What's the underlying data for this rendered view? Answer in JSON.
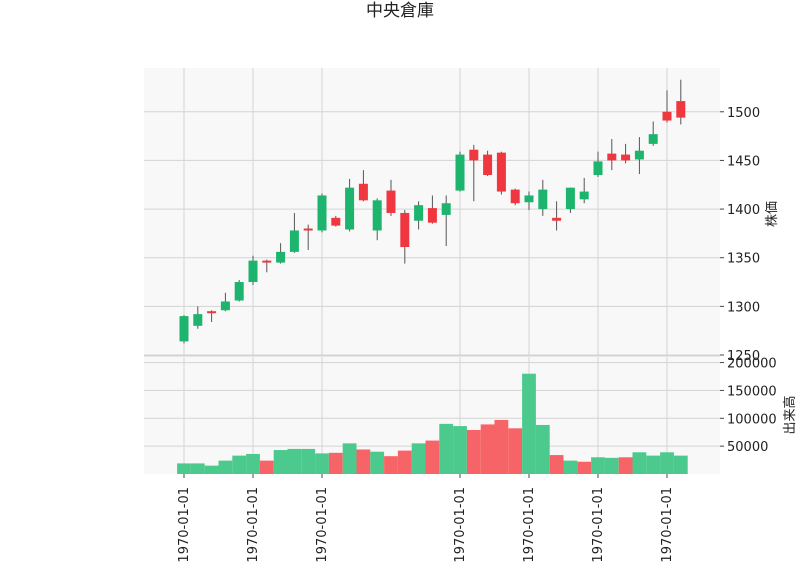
{
  "chart_data": [
    {
      "type": "candlestick",
      "title": "中央倉庫",
      "ylabel": "株価",
      "ylim": [
        1250,
        1545
      ],
      "yticks": [
        1250,
        1300,
        1350,
        1400,
        1450,
        1500
      ],
      "grid": true,
      "up_color": "#1db46e",
      "down_color": "#f0373f",
      "ohlc": [
        {
          "open": 1264,
          "high": 1291,
          "low": 1262,
          "close": 1290
        },
        {
          "open": 1280,
          "high": 1300,
          "low": 1277,
          "close": 1292
        },
        {
          "open": 1295,
          "high": 1296,
          "low": 1284,
          "close": 1294
        },
        {
          "open": 1296,
          "high": 1314,
          "low": 1295,
          "close": 1305
        },
        {
          "open": 1306,
          "high": 1327,
          "low": 1305,
          "close": 1325
        },
        {
          "open": 1325,
          "high": 1352,
          "low": 1322,
          "close": 1347
        },
        {
          "open": 1347,
          "high": 1348,
          "low": 1335,
          "close": 1345
        },
        {
          "open": 1345,
          "high": 1365,
          "low": 1344,
          "close": 1356
        },
        {
          "open": 1356,
          "high": 1396,
          "low": 1355,
          "close": 1378
        },
        {
          "open": 1380,
          "high": 1384,
          "low": 1358,
          "close": 1378
        },
        {
          "open": 1378,
          "high": 1416,
          "low": 1376,
          "close": 1414
        },
        {
          "open": 1391,
          "high": 1393,
          "low": 1382,
          "close": 1383
        },
        {
          "open": 1379,
          "high": 1431,
          "low": 1377,
          "close": 1422
        },
        {
          "open": 1426,
          "high": 1440,
          "low": 1408,
          "close": 1409
        },
        {
          "open": 1378,
          "high": 1411,
          "low": 1368,
          "close": 1409
        },
        {
          "open": 1419,
          "high": 1430,
          "low": 1393,
          "close": 1396
        },
        {
          "open": 1396,
          "high": 1399,
          "low": 1344,
          "close": 1361
        },
        {
          "open": 1388,
          "high": 1408,
          "low": 1379,
          "close": 1404
        },
        {
          "open": 1401,
          "high": 1414,
          "low": 1385,
          "close": 1386
        },
        {
          "open": 1394,
          "high": 1414,
          "low": 1362,
          "close": 1406
        },
        {
          "open": 1419,
          "high": 1459,
          "low": 1418,
          "close": 1456
        },
        {
          "open": 1461,
          "high": 1466,
          "low": 1408,
          "close": 1450
        },
        {
          "open": 1456,
          "high": 1460,
          "low": 1434,
          "close": 1435
        },
        {
          "open": 1458,
          "high": 1459,
          "low": 1415,
          "close": 1418
        },
        {
          "open": 1420,
          "high": 1421,
          "low": 1404,
          "close": 1406
        },
        {
          "open": 1407,
          "high": 1418,
          "low": 1399,
          "close": 1414
        },
        {
          "open": 1400,
          "high": 1430,
          "low": 1393,
          "close": 1420
        },
        {
          "open": 1391,
          "high": 1408,
          "low": 1378,
          "close": 1388
        },
        {
          "open": 1400,
          "high": 1422,
          "low": 1396,
          "close": 1422
        },
        {
          "open": 1410,
          "high": 1432,
          "low": 1406,
          "close": 1418
        },
        {
          "open": 1435,
          "high": 1459,
          "low": 1433,
          "close": 1449
        },
        {
          "open": 1457,
          "high": 1472,
          "low": 1440,
          "close": 1450
        },
        {
          "open": 1456,
          "high": 1467,
          "low": 1447,
          "close": 1450
        },
        {
          "open": 1451,
          "high": 1474,
          "low": 1436,
          "close": 1460
        },
        {
          "open": 1467,
          "high": 1490,
          "low": 1465,
          "close": 1477
        },
        {
          "open": 1500,
          "high": 1522,
          "low": 1489,
          "close": 1491
        },
        {
          "open": 1511,
          "high": 1533,
          "low": 1487,
          "close": 1494
        }
      ]
    },
    {
      "type": "bar",
      "ylabel": "出来高",
      "ylim": [
        0,
        210000
      ],
      "yticks": [
        50000,
        100000,
        150000,
        200000
      ],
      "ytick_labels": [
        "50000",
        "100000",
        "150000",
        "200000"
      ],
      "grid": true,
      "values": [
        19000,
        19000,
        15000,
        24000,
        33000,
        36000,
        24000,
        43000,
        45000,
        45000,
        37000,
        38000,
        55000,
        44000,
        40000,
        32000,
        42000,
        55000,
        60000,
        90000,
        86000,
        79000,
        89000,
        97000,
        82000,
        180000,
        88000,
        34000,
        24000,
        22000,
        30000,
        29000,
        30000,
        39000,
        33000,
        39000,
        33000
      ],
      "colors": [
        "up",
        "up",
        "up",
        "up",
        "up",
        "up",
        "down",
        "up",
        "up",
        "up",
        "up",
        "down",
        "up",
        "down",
        "up",
        "down",
        "down",
        "up",
        "down",
        "up",
        "up",
        "down",
        "down",
        "down",
        "down",
        "up",
        "up",
        "down",
        "up",
        "down",
        "up",
        "up",
        "down",
        "up",
        "up",
        "up",
        "up"
      ]
    }
  ],
  "x_tick_labels": [
    "1970-01-01",
    "1970-01-01",
    "1970-01-01",
    "1970-01-01",
    "1970-01-01",
    "1970-01-01",
    "1970-01-01"
  ],
  "x_tick_positions": [
    0,
    5,
    10,
    20,
    25,
    30,
    35
  ]
}
